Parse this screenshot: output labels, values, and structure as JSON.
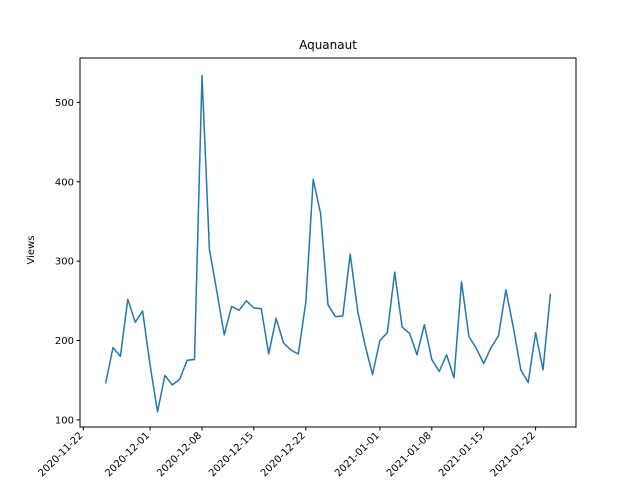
{
  "chart_data": {
    "type": "line",
    "title": "Aquanaut",
    "xlabel": "",
    "ylabel": "Views",
    "x_ticks": [
      "2020-11-22",
      "2020-12-01",
      "2020-12-08",
      "2020-12-15",
      "2020-12-22",
      "2021-01-01",
      "2021-01-08",
      "2021-01-15",
      "2021-01-22"
    ],
    "y_ticks": [
      100,
      200,
      300,
      400,
      500
    ],
    "xlim": [
      "2020-11-22",
      "2021-01-27"
    ],
    "ylim": [
      91,
      556
    ],
    "grid": false,
    "series": [
      {
        "color": "#1f77b4",
        "x": [
          "2020-11-25",
          "2020-11-26",
          "2020-11-27",
          "2020-11-28",
          "2020-11-29",
          "2020-11-30",
          "2020-12-01",
          "2020-12-02",
          "2020-12-03",
          "2020-12-04",
          "2020-12-05",
          "2020-12-06",
          "2020-12-07",
          "2020-12-08",
          "2020-12-09",
          "2020-12-10",
          "2020-12-11",
          "2020-12-12",
          "2020-12-13",
          "2020-12-14",
          "2020-12-15",
          "2020-12-16",
          "2020-12-17",
          "2020-12-18",
          "2020-12-19",
          "2020-12-20",
          "2020-12-21",
          "2020-12-22",
          "2020-12-23",
          "2020-12-24",
          "2020-12-25",
          "2020-12-26",
          "2020-12-27",
          "2020-12-28",
          "2020-12-29",
          "2020-12-30",
          "2020-12-31",
          "2021-01-01",
          "2021-01-02",
          "2021-01-03",
          "2021-01-04",
          "2021-01-05",
          "2021-01-06",
          "2021-01-07",
          "2021-01-08",
          "2021-01-09",
          "2021-01-10",
          "2021-01-11",
          "2021-01-12",
          "2021-01-13",
          "2021-01-14",
          "2021-01-15",
          "2021-01-16",
          "2021-01-17",
          "2021-01-18",
          "2021-01-19",
          "2021-01-20",
          "2021-01-21",
          "2021-01-22",
          "2021-01-23",
          "2021-01-24"
        ],
        "values": [
          146,
          191,
          180,
          252,
          223,
          237,
          169,
          110,
          156,
          144,
          151,
          175,
          176,
          534,
          315,
          262,
          207,
          243,
          238,
          250,
          241,
          240,
          183,
          228,
          197,
          188,
          183,
          248,
          403,
          360,
          245,
          230,
          231,
          309,
          237,
          194,
          157,
          200,
          210,
          286,
          217,
          209,
          182,
          220,
          176,
          161,
          182,
          153,
          274,
          205,
          190,
          171,
          191,
          206,
          264,
          216,
          163,
          147,
          210,
          163,
          259
        ]
      }
    ]
  }
}
